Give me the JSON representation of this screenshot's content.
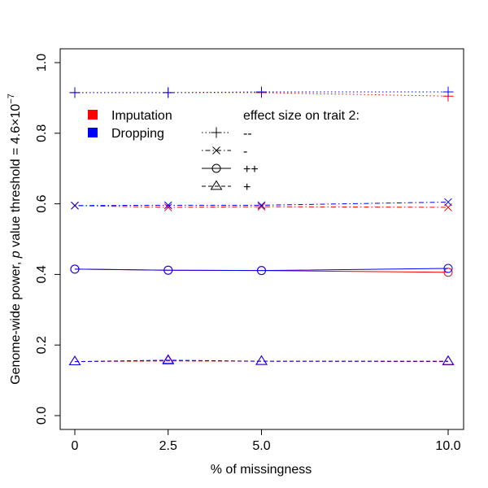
{
  "chart_data": {
    "type": "line",
    "title": "",
    "xlabel": "% of missingness",
    "ylabel_parts": {
      "prefix": "Genome-wide power, ",
      "italic": "p",
      "suffix": " value threshold = 4.6×10",
      "superscript": "−7"
    },
    "x": [
      0,
      2.5,
      5.0,
      10.0
    ],
    "x_tick_labels": [
      "0",
      "2.5",
      "5.0",
      "10.0"
    ],
    "y_ticks": [
      0.0,
      0.2,
      0.4,
      0.6,
      0.8,
      1.0
    ],
    "y_tick_labels": [
      "0.0",
      "0.2",
      "0.4",
      "0.6",
      "0.8",
      "1.0"
    ],
    "ylim": [
      0.0,
      1.0
    ],
    "grid": false,
    "methods": [
      {
        "name": "Imputation",
        "color": "#ff0000"
      },
      {
        "name": "Dropping",
        "color": "#0000ff"
      }
    ],
    "effect_legend_title": "effect size on trait 2:",
    "effects": [
      {
        "label": "--",
        "marker": "plus",
        "dash": "dotted"
      },
      {
        "label": "-",
        "marker": "cross",
        "dash": "dotdash"
      },
      {
        "label": "++",
        "marker": "circle",
        "dash": "solid"
      },
      {
        "label": "+",
        "marker": "triangle",
        "dash": "dashed"
      }
    ],
    "series": [
      {
        "method": "Imputation",
        "effect": "--",
        "values": [
          0.915,
          0.915,
          0.915,
          0.905
        ]
      },
      {
        "method": "Dropping",
        "effect": "--",
        "values": [
          0.915,
          0.915,
          0.917,
          0.917
        ]
      },
      {
        "method": "Imputation",
        "effect": "-",
        "values": [
          0.595,
          0.59,
          0.592,
          0.59
        ]
      },
      {
        "method": "Dropping",
        "effect": "-",
        "values": [
          0.595,
          0.596,
          0.596,
          0.605
        ]
      },
      {
        "method": "Imputation",
        "effect": "++",
        "values": [
          0.415,
          0.412,
          0.411,
          0.406
        ]
      },
      {
        "method": "Dropping",
        "effect": "++",
        "values": [
          0.415,
          0.412,
          0.411,
          0.417
        ]
      },
      {
        "method": "Imputation",
        "effect": "+",
        "values": [
          0.153,
          0.155,
          0.154,
          0.153
        ]
      },
      {
        "method": "Dropping",
        "effect": "+",
        "values": [
          0.153,
          0.157,
          0.154,
          0.154
        ]
      }
    ]
  }
}
